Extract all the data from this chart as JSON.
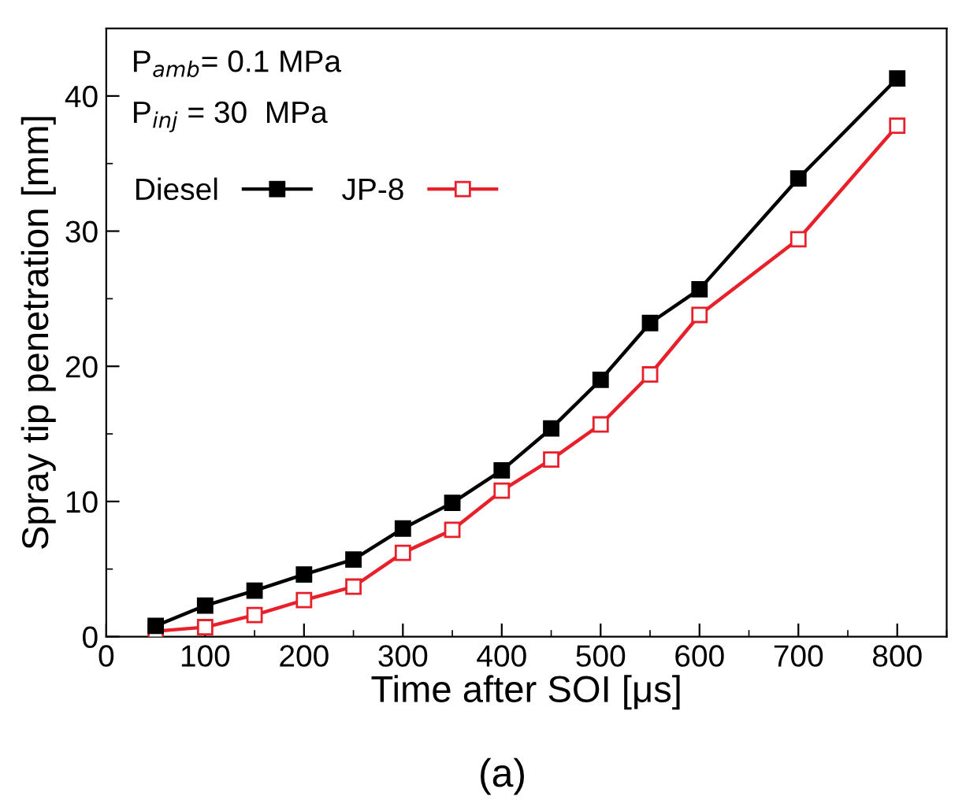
{
  "chart_data": {
    "type": "line",
    "xlabel": "Time after SOI [μs]",
    "ylabel": "Spray tip penetration [mm]",
    "x": [
      50,
      100,
      150,
      200,
      250,
      300,
      350,
      400,
      450,
      500,
      550,
      600,
      700,
      800
    ],
    "series": [
      {
        "name": "Diesel",
        "color": "#000000",
        "marker": "square",
        "values": [
          0.8,
          2.3,
          3.4,
          4.6,
          5.7,
          8.0,
          9.9,
          12.3,
          15.4,
          19.0,
          23.2,
          25.7,
          33.9,
          41.3
        ]
      },
      {
        "name": "JP-8",
        "color": "#e8202a",
        "marker": "square",
        "values": [
          0.4,
          0.7,
          1.6,
          2.7,
          3.7,
          6.2,
          7.9,
          10.8,
          13.1,
          15.7,
          19.4,
          23.8,
          29.4,
          37.8
        ]
      }
    ],
    "xlim": [
      0,
      850
    ],
    "xticks": [
      0,
      100,
      200,
      300,
      400,
      500,
      600,
      700,
      800
    ],
    "ylim": [
      0,
      45
    ],
    "yticks": [
      0,
      10,
      20,
      30,
      40
    ],
    "grid": false,
    "legend": "top left",
    "line_style": "solid",
    "annotations": [
      "P$_{amb}$= 0.1 MPa",
      "P$_{inj}$ = 30  MPa",
      "(a)"
    ]
  }
}
